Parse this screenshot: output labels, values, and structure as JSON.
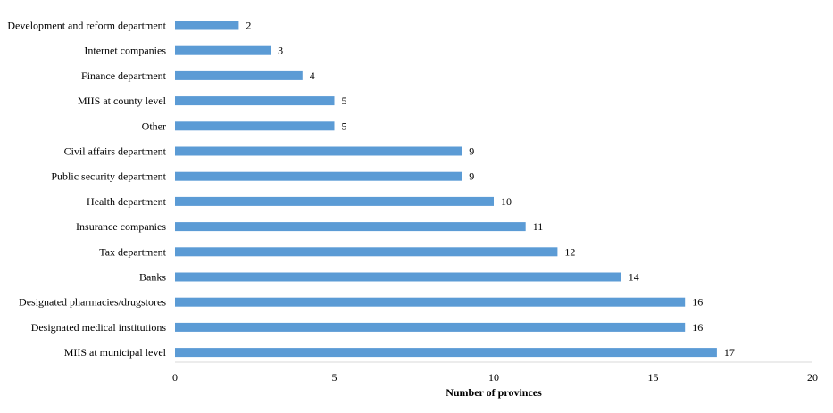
{
  "chart_data": {
    "type": "bar",
    "orientation": "horizontal",
    "categories": [
      "Development and reform department",
      "Internet companies",
      "Finance department",
      "MIIS at county level",
      "Other",
      "Civil affairs department",
      "Public security department",
      "Health department",
      "Insurance companies",
      "Tax department",
      "Banks",
      "Designated pharmacies/drugstores",
      "Designated medical institutions",
      "MIIS at municipal level"
    ],
    "values": [
      2,
      3,
      4,
      5,
      5,
      9,
      9,
      10,
      11,
      12,
      14,
      16,
      16,
      17
    ],
    "title": "",
    "xlabel": "Number of provinces",
    "ylabel": "",
    "xlim": [
      0,
      20
    ],
    "xticks": [
      0,
      5,
      10,
      15,
      20
    ],
    "grid": false,
    "legend": "none",
    "bar_color": "#5b9bd5"
  }
}
